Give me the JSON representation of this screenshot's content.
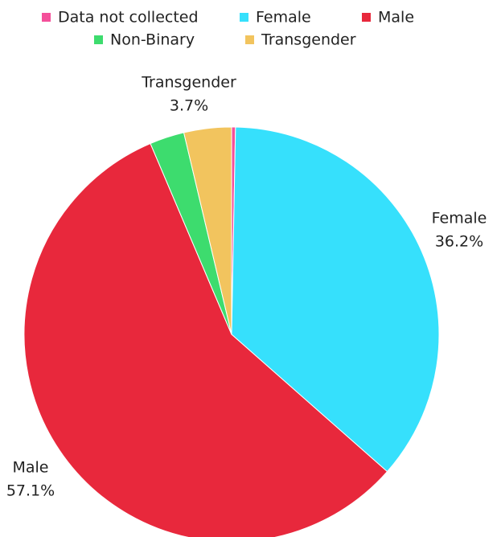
{
  "chart_data": {
    "type": "pie",
    "categories": [
      "Data not collected",
      "Female",
      "Male",
      "Non-Binary",
      "Transgender"
    ],
    "values": [
      0.3,
      36.2,
      57.1,
      2.7,
      3.7
    ],
    "value_labels": [
      null,
      "36.2%",
      "57.1%",
      null,
      "3.7%"
    ],
    "colors": [
      "#f4509a",
      "#36e0fc",
      "#e8283c",
      "#3ddc6e",
      "#f2c45e"
    ],
    "legend": "top"
  }
}
